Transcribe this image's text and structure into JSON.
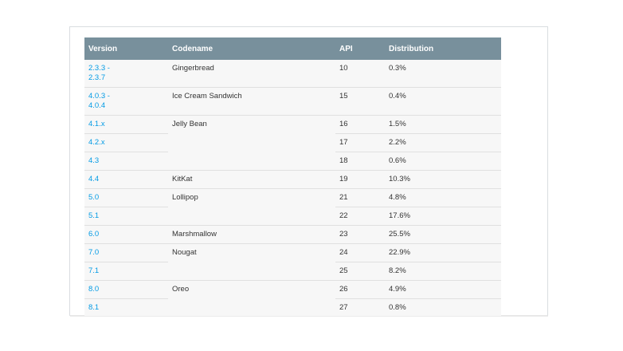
{
  "table": {
    "headers": {
      "version": "Version",
      "codename": "Codename",
      "api": "API",
      "distribution": "Distribution"
    },
    "rows": [
      {
        "version": "2.3.3 -\n2.3.7",
        "codename": "Gingerbread",
        "api": "10",
        "distribution": "0.3%"
      },
      {
        "version": "4.0.3 -\n4.0.4",
        "codename": "Ice Cream Sandwich",
        "api": "15",
        "distribution": "0.4%"
      },
      {
        "version": "4.1.x",
        "codename": "Jelly Bean",
        "api": "16",
        "distribution": "1.5%"
      },
      {
        "version": "4.2.x",
        "codename": "",
        "api": "17",
        "distribution": "2.2%"
      },
      {
        "version": "4.3",
        "codename": "",
        "api": "18",
        "distribution": "0.6%"
      },
      {
        "version": "4.4",
        "codename": "KitKat",
        "api": "19",
        "distribution": "10.3%"
      },
      {
        "version": "5.0",
        "codename": "Lollipop",
        "api": "21",
        "distribution": "4.8%"
      },
      {
        "version": "5.1",
        "codename": "",
        "api": "22",
        "distribution": "17.6%"
      },
      {
        "version": "6.0",
        "codename": "Marshmallow",
        "api": "23",
        "distribution": "25.5%"
      },
      {
        "version": "7.0",
        "codename": "Nougat",
        "api": "24",
        "distribution": "22.9%"
      },
      {
        "version": "7.1",
        "codename": "",
        "api": "25",
        "distribution": "8.2%"
      },
      {
        "version": "8.0",
        "codename": "Oreo",
        "api": "26",
        "distribution": "4.9%"
      },
      {
        "version": "8.1",
        "codename": "",
        "api": "27",
        "distribution": "0.8%"
      }
    ]
  },
  "colors": {
    "header_bg": "#78909c",
    "link": "#039be5",
    "row_bg": "#f7f7f7"
  }
}
